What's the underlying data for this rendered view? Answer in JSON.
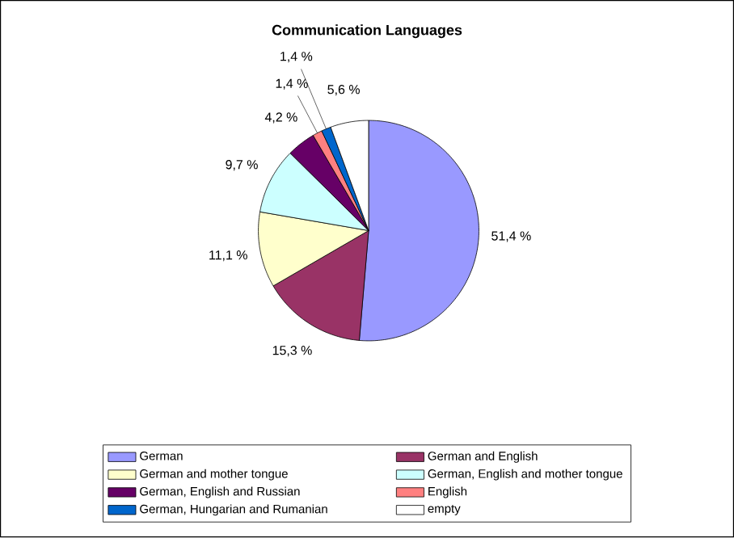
{
  "chart_data": {
    "type": "pie",
    "title": "Communication Languages",
    "categories": [
      "German",
      "German and English",
      "German and mother tongue",
      "German, English and mother tongue",
      "German, English and Russian",
      "English",
      "German, Hungarian and Rumanian",
      "empty"
    ],
    "values": [
      51.4,
      15.3,
      11.1,
      9.7,
      4.2,
      1.4,
      1.4,
      5.6
    ],
    "value_labels": [
      "51,4 %",
      "15,3 %",
      "11,1 %",
      "9,7 %",
      "4,2 %",
      "1,4 %",
      "1,4 %",
      "5,6 %"
    ],
    "colors": [
      "#9999ff",
      "#993366",
      "#ffffcc",
      "#ccffff",
      "#660066",
      "#ff8080",
      "#0066cc",
      "#ffffff"
    ],
    "legend": "bottom"
  }
}
